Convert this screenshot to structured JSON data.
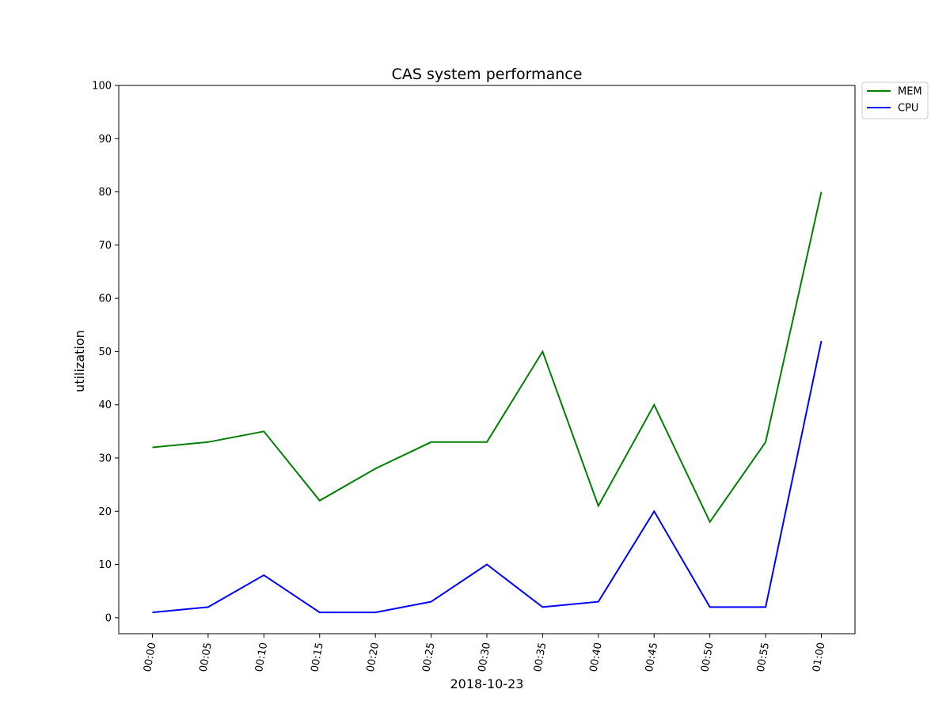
{
  "chart_data": {
    "type": "line",
    "title": "CAS system performance",
    "xlabel": "2018-10-23",
    "ylabel": "utilization",
    "categories": [
      "00:00",
      "00:05",
      "00:10",
      "00:15",
      "00:20",
      "00:25",
      "00:30",
      "00:35",
      "00:40",
      "00:45",
      "00:50",
      "00:55",
      "01:00"
    ],
    "yticks": [
      0,
      10,
      20,
      30,
      40,
      50,
      60,
      70,
      80,
      90,
      100
    ],
    "ylim": [
      -3,
      100
    ],
    "grid": false,
    "legend_position": "outside-top-right",
    "series": [
      {
        "name": "MEM",
        "color": "#008000",
        "values": [
          32,
          33,
          35,
          22,
          28,
          33,
          33,
          50,
          21,
          40,
          18,
          33,
          80
        ]
      },
      {
        "name": "CPU",
        "color": "#0000ff",
        "values": [
          1,
          2,
          8,
          1,
          1,
          3,
          10,
          2,
          3,
          20,
          2,
          2,
          52
        ]
      }
    ]
  }
}
